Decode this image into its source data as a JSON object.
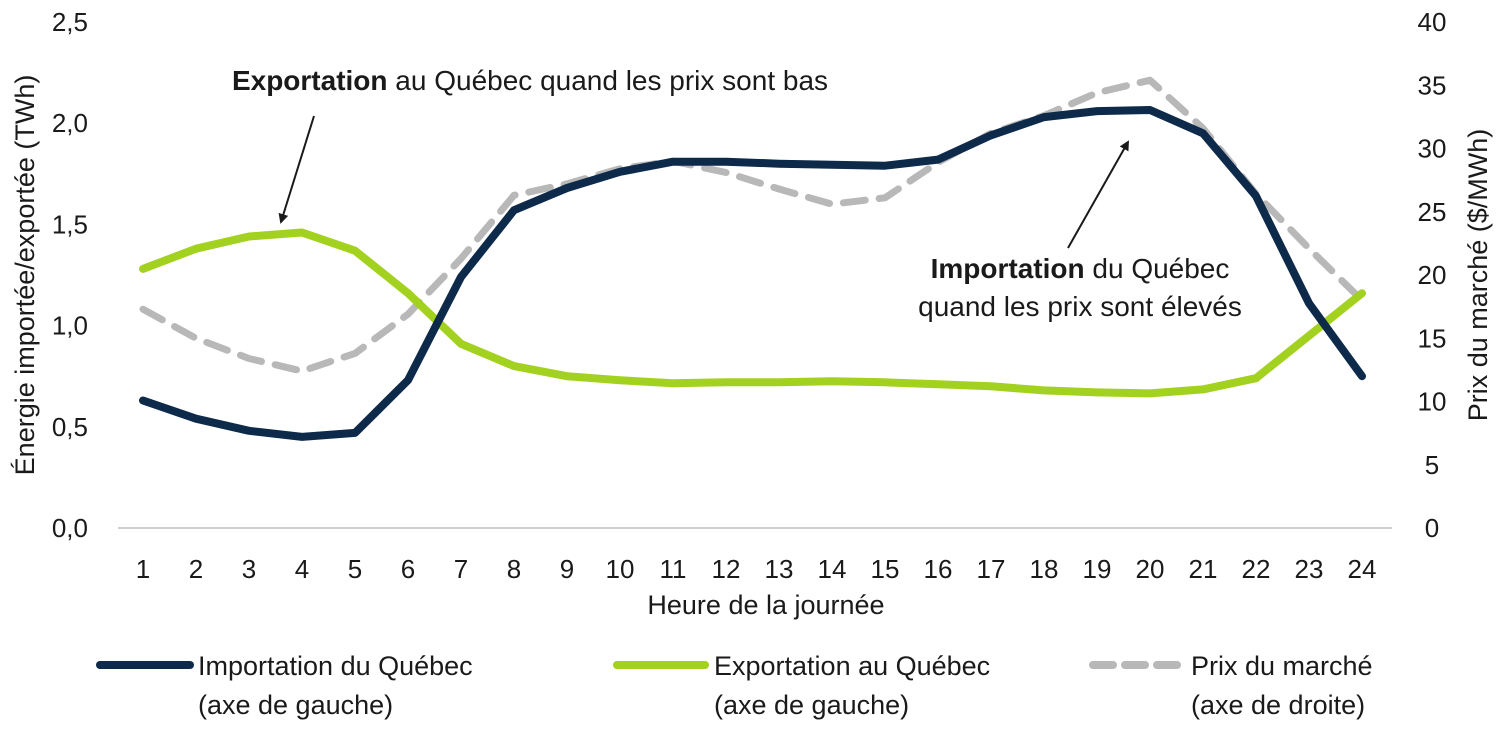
{
  "chart_data": {
    "type": "line",
    "x": [
      1,
      2,
      3,
      4,
      5,
      6,
      7,
      8,
      9,
      10,
      11,
      12,
      13,
      14,
      15,
      16,
      17,
      18,
      19,
      20,
      21,
      22,
      23,
      24
    ],
    "xlabel": "Heure de la journée",
    "ylabel_left": "Énergie importée/exportée (TWh)",
    "ylabel_right": "Prix du marché ($/MWh)",
    "ylim_left": [
      0,
      2.5
    ],
    "ylim_right": [
      0,
      40
    ],
    "left_ticks": [
      "0,0",
      "0,5",
      "1,0",
      "1,5",
      "2,0",
      "2,5"
    ],
    "right_ticks": [
      "0",
      "5",
      "10",
      "15",
      "20",
      "25",
      "30",
      "35",
      "40"
    ],
    "grid": false,
    "legend_position": "bottom",
    "series": [
      {
        "name_line1": "Importation du Québec",
        "name_line2": "(axe de gauche)",
        "axis": "left",
        "color": "#0d2a4a",
        "dash": "solid",
        "values": [
          0.63,
          0.54,
          0.48,
          0.45,
          0.47,
          0.73,
          1.24,
          1.57,
          1.68,
          1.76,
          1.81,
          1.81,
          1.8,
          1.795,
          1.79,
          1.82,
          1.94,
          2.03,
          2.06,
          2.065,
          1.95,
          1.64,
          1.11,
          0.75
        ]
      },
      {
        "name_line1": "Exportation au Québec",
        "name_line2": "(axe de gauche)",
        "axis": "left",
        "color": "#a3d11f",
        "dash": "solid",
        "values": [
          1.28,
          1.38,
          1.44,
          1.46,
          1.37,
          1.16,
          0.91,
          0.8,
          0.75,
          0.73,
          0.715,
          0.72,
          0.72,
          0.725,
          0.72,
          0.71,
          0.7,
          0.68,
          0.67,
          0.665,
          0.685,
          0.74,
          0.95,
          1.16
        ]
      },
      {
        "name_line1": "Prix du marché",
        "name_line2": "(axe de droite)",
        "axis": "right",
        "color": "#b8b8b8",
        "dash": "dashed",
        "values": [
          17.3,
          15.0,
          13.4,
          12.4,
          13.8,
          16.9,
          21.3,
          26.3,
          27.2,
          28.4,
          29.0,
          28.1,
          26.8,
          25.6,
          26.1,
          28.9,
          31.2,
          32.6,
          34.4,
          35.4,
          31.6,
          26.4,
          22.1,
          18.0
        ]
      }
    ],
    "annotations": [
      {
        "bold": "Exportation",
        "rest": " au Québec quand les prix sont bas"
      },
      {
        "bold": "Importation",
        "rest": " du Québec",
        "line2": "quand les prix sont élevés"
      }
    ]
  }
}
